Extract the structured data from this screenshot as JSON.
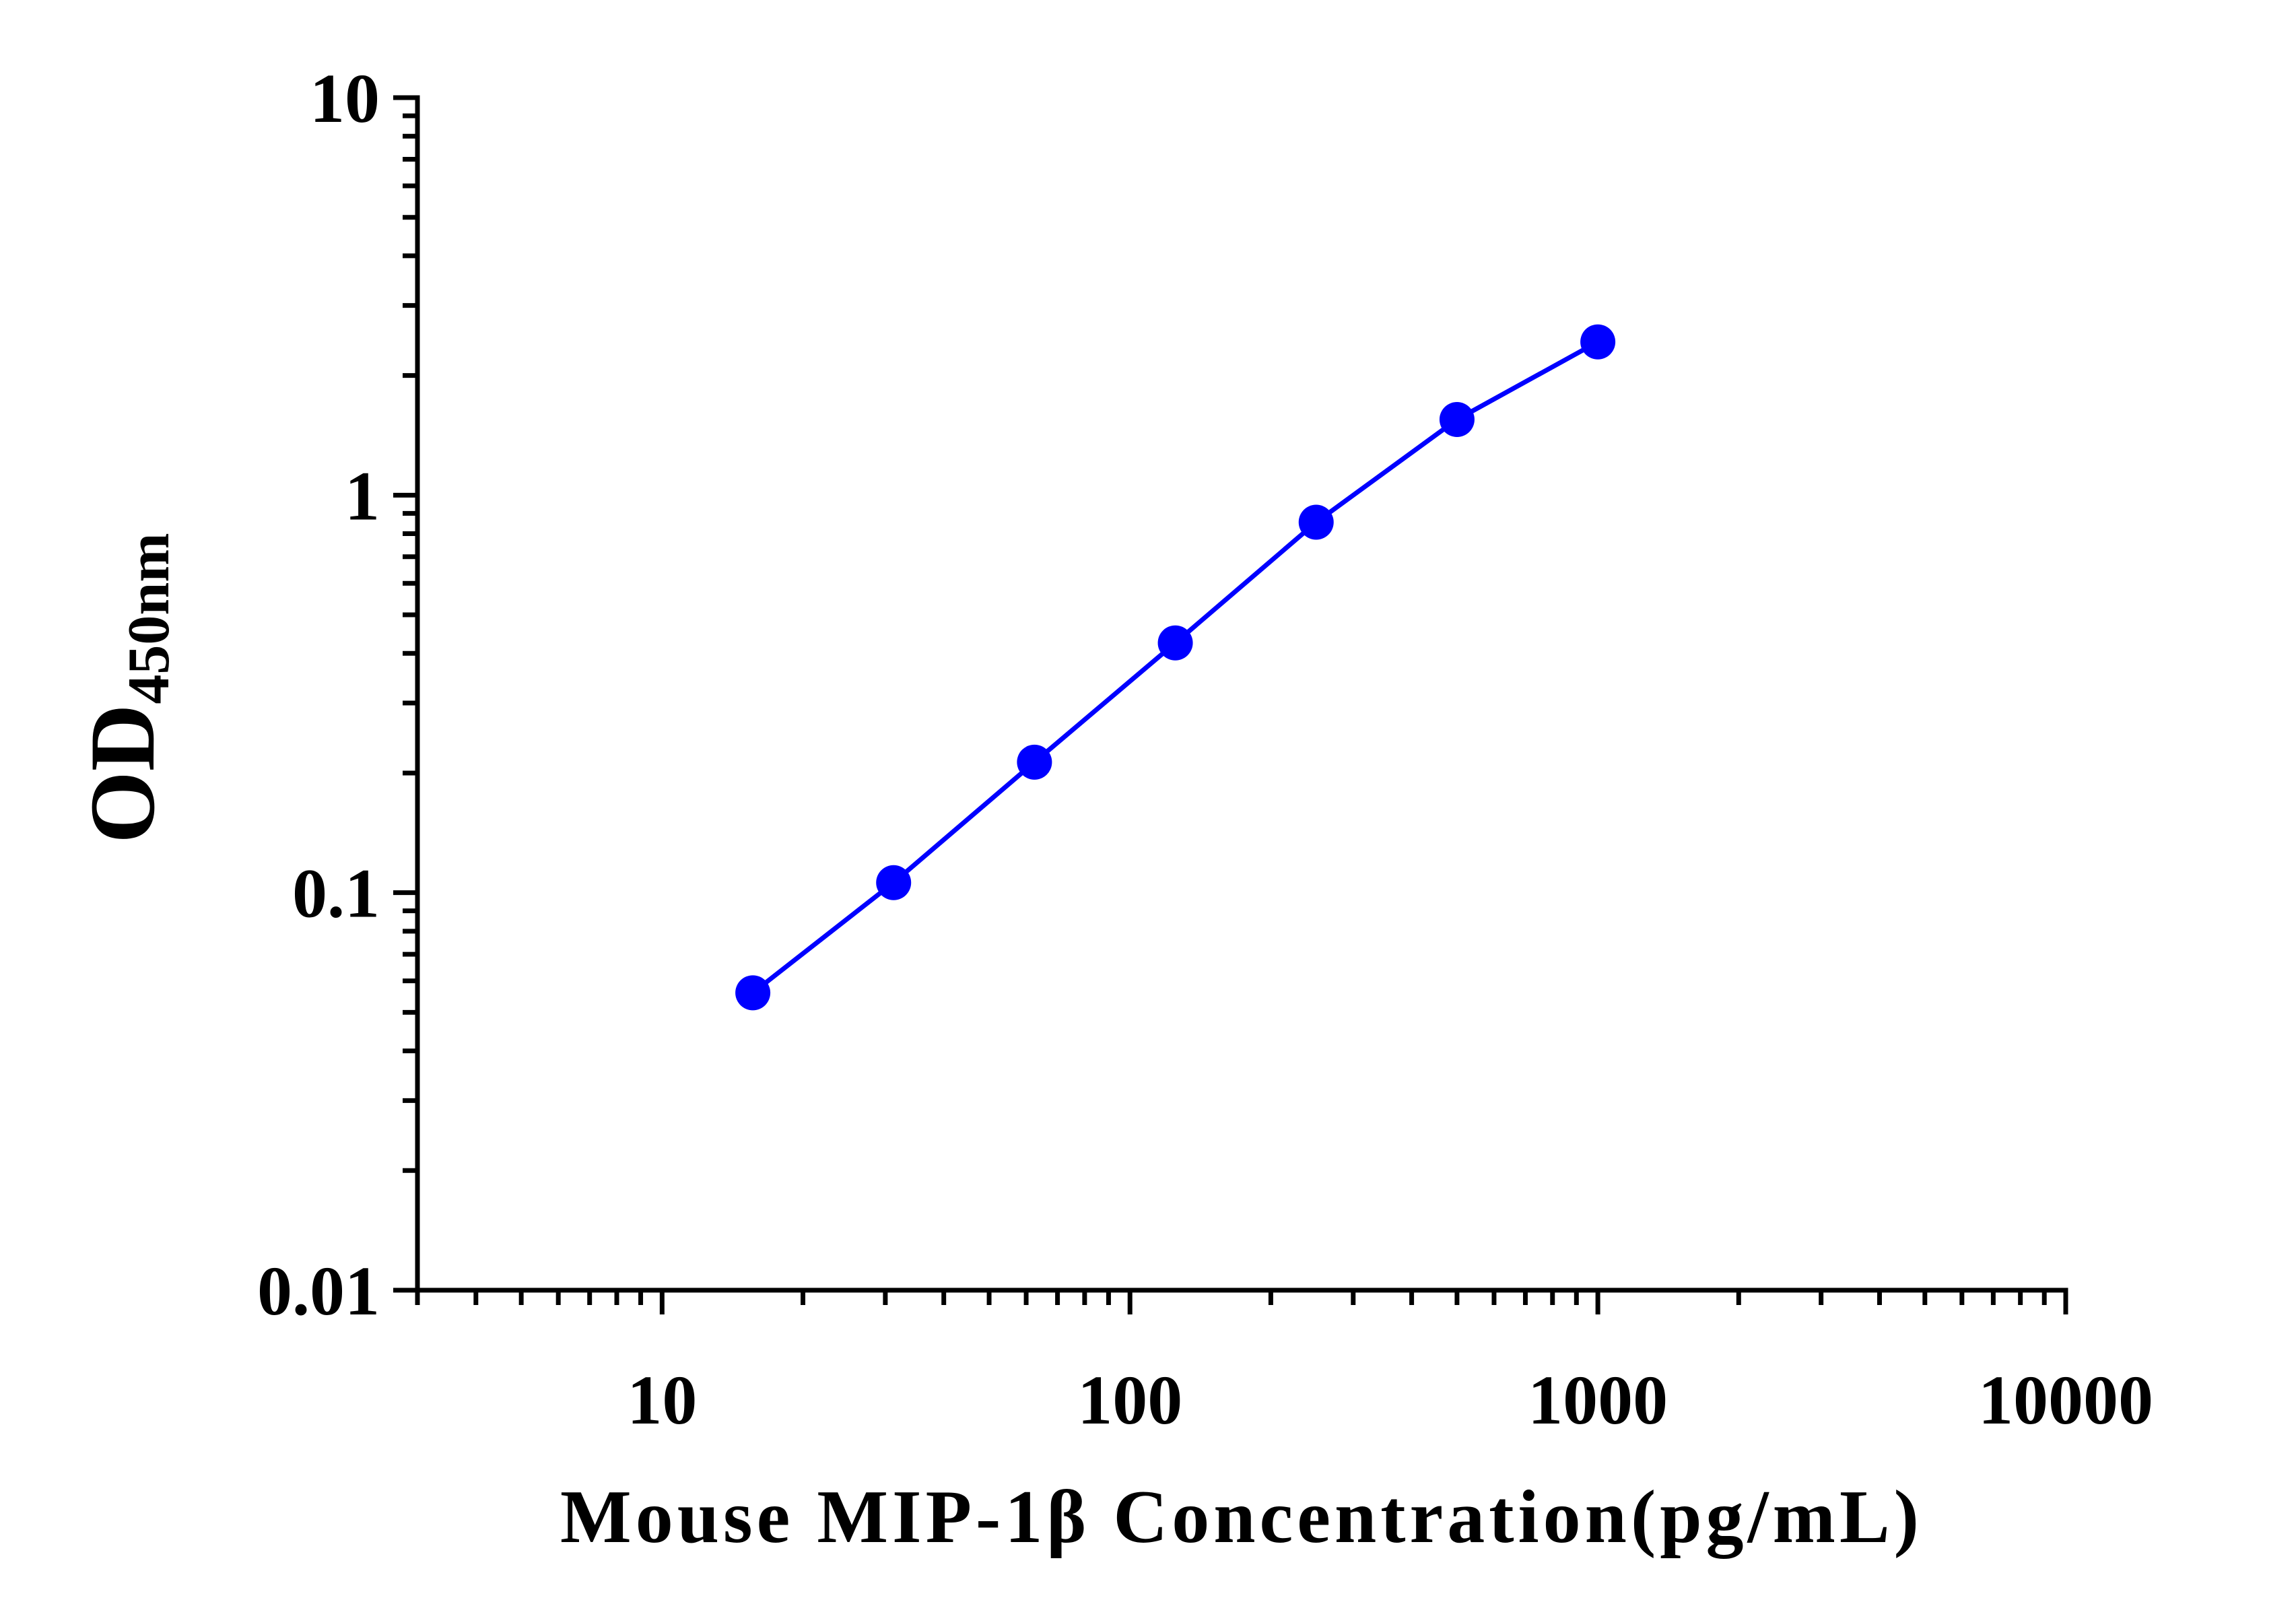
{
  "chart_data": {
    "type": "line",
    "title": "",
    "xlabel": "Mouse MIP-1β Concentration(pg/mL)",
    "ylabel": {
      "main": "OD",
      "subscript": "450nm"
    },
    "x_scale": "log",
    "y_scale": "log",
    "xlim": [
      3,
      10000
    ],
    "ylim": [
      0.01,
      10
    ],
    "x_ticks": [
      10,
      100,
      1000,
      10000
    ],
    "x_tick_labels": [
      "10",
      "100",
      "1000",
      "10000"
    ],
    "y_ticks": [
      0.01,
      0.1,
      1,
      10
    ],
    "y_tick_labels": [
      "0.01",
      "0.1",
      "1",
      "10"
    ],
    "grid": false,
    "series": [
      {
        "color": "#0000ff",
        "x": [
          15.63,
          31.25,
          62.5,
          125,
          250,
          500,
          1000
        ],
        "y": [
          0.056,
          0.106,
          0.213,
          0.425,
          0.855,
          1.55,
          2.43
        ]
      }
    ]
  }
}
